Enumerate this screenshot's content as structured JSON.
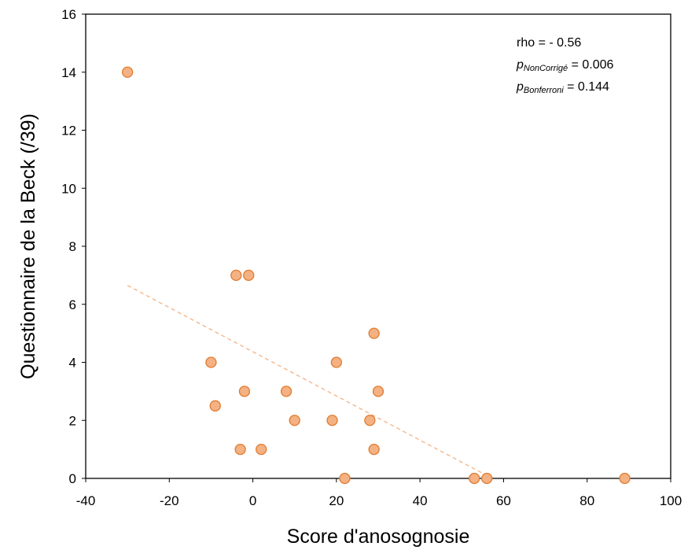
{
  "chart_data": {
    "type": "scatter",
    "title": "",
    "xlabel": "Score d'anosognosie",
    "ylabel": "Questionnaire de la Beck (/39)",
    "xlim": [
      -40,
      100
    ],
    "ylim": [
      0,
      16
    ],
    "x_ticks": [
      "-40",
      "-20",
      "0",
      "20",
      "40",
      "60",
      "80",
      "100"
    ],
    "y_ticks": [
      "0",
      "2",
      "4",
      "6",
      "8",
      "10",
      "12",
      "14",
      "16"
    ],
    "grid": false,
    "series": [
      {
        "points": [
          {
            "x": -30,
            "y": 14
          },
          {
            "x": -4,
            "y": 7
          },
          {
            "x": -1,
            "y": 7
          },
          {
            "x": -10,
            "y": 4
          },
          {
            "x": -9,
            "y": 2.5
          },
          {
            "x": -2,
            "y": 3
          },
          {
            "x": -3,
            "y": 1
          },
          {
            "x": 2,
            "y": 1
          },
          {
            "x": 8,
            "y": 3
          },
          {
            "x": 10,
            "y": 2
          },
          {
            "x": 19,
            "y": 2
          },
          {
            "x": 20,
            "y": 4
          },
          {
            "x": 22,
            "y": 0
          },
          {
            "x": 28,
            "y": 2
          },
          {
            "x": 29,
            "y": 5
          },
          {
            "x": 29,
            "y": 1
          },
          {
            "x": 30,
            "y": 3
          },
          {
            "x": 53,
            "y": 0
          },
          {
            "x": 56,
            "y": 0
          },
          {
            "x": 89,
            "y": 0
          }
        ],
        "color": "#F4B183",
        "edge_color": "#E07B2E"
      }
    ],
    "trendline": {
      "x": [
        -30,
        56
      ],
      "y": [
        6.65,
        0.1
      ],
      "color": "#F4B183",
      "style": "dashed"
    },
    "annotations": {
      "rho": "rho = - 0.56",
      "p_uncorrected_symbol": "p",
      "p_uncorrected_sub": "NonCorrigé",
      "p_uncorrected_value": " = 0.006",
      "p_bonferroni_symbol": "p",
      "p_bonferroni_sub": "Bonferroni",
      "p_bonferroni_value": " = 0.144"
    }
  }
}
